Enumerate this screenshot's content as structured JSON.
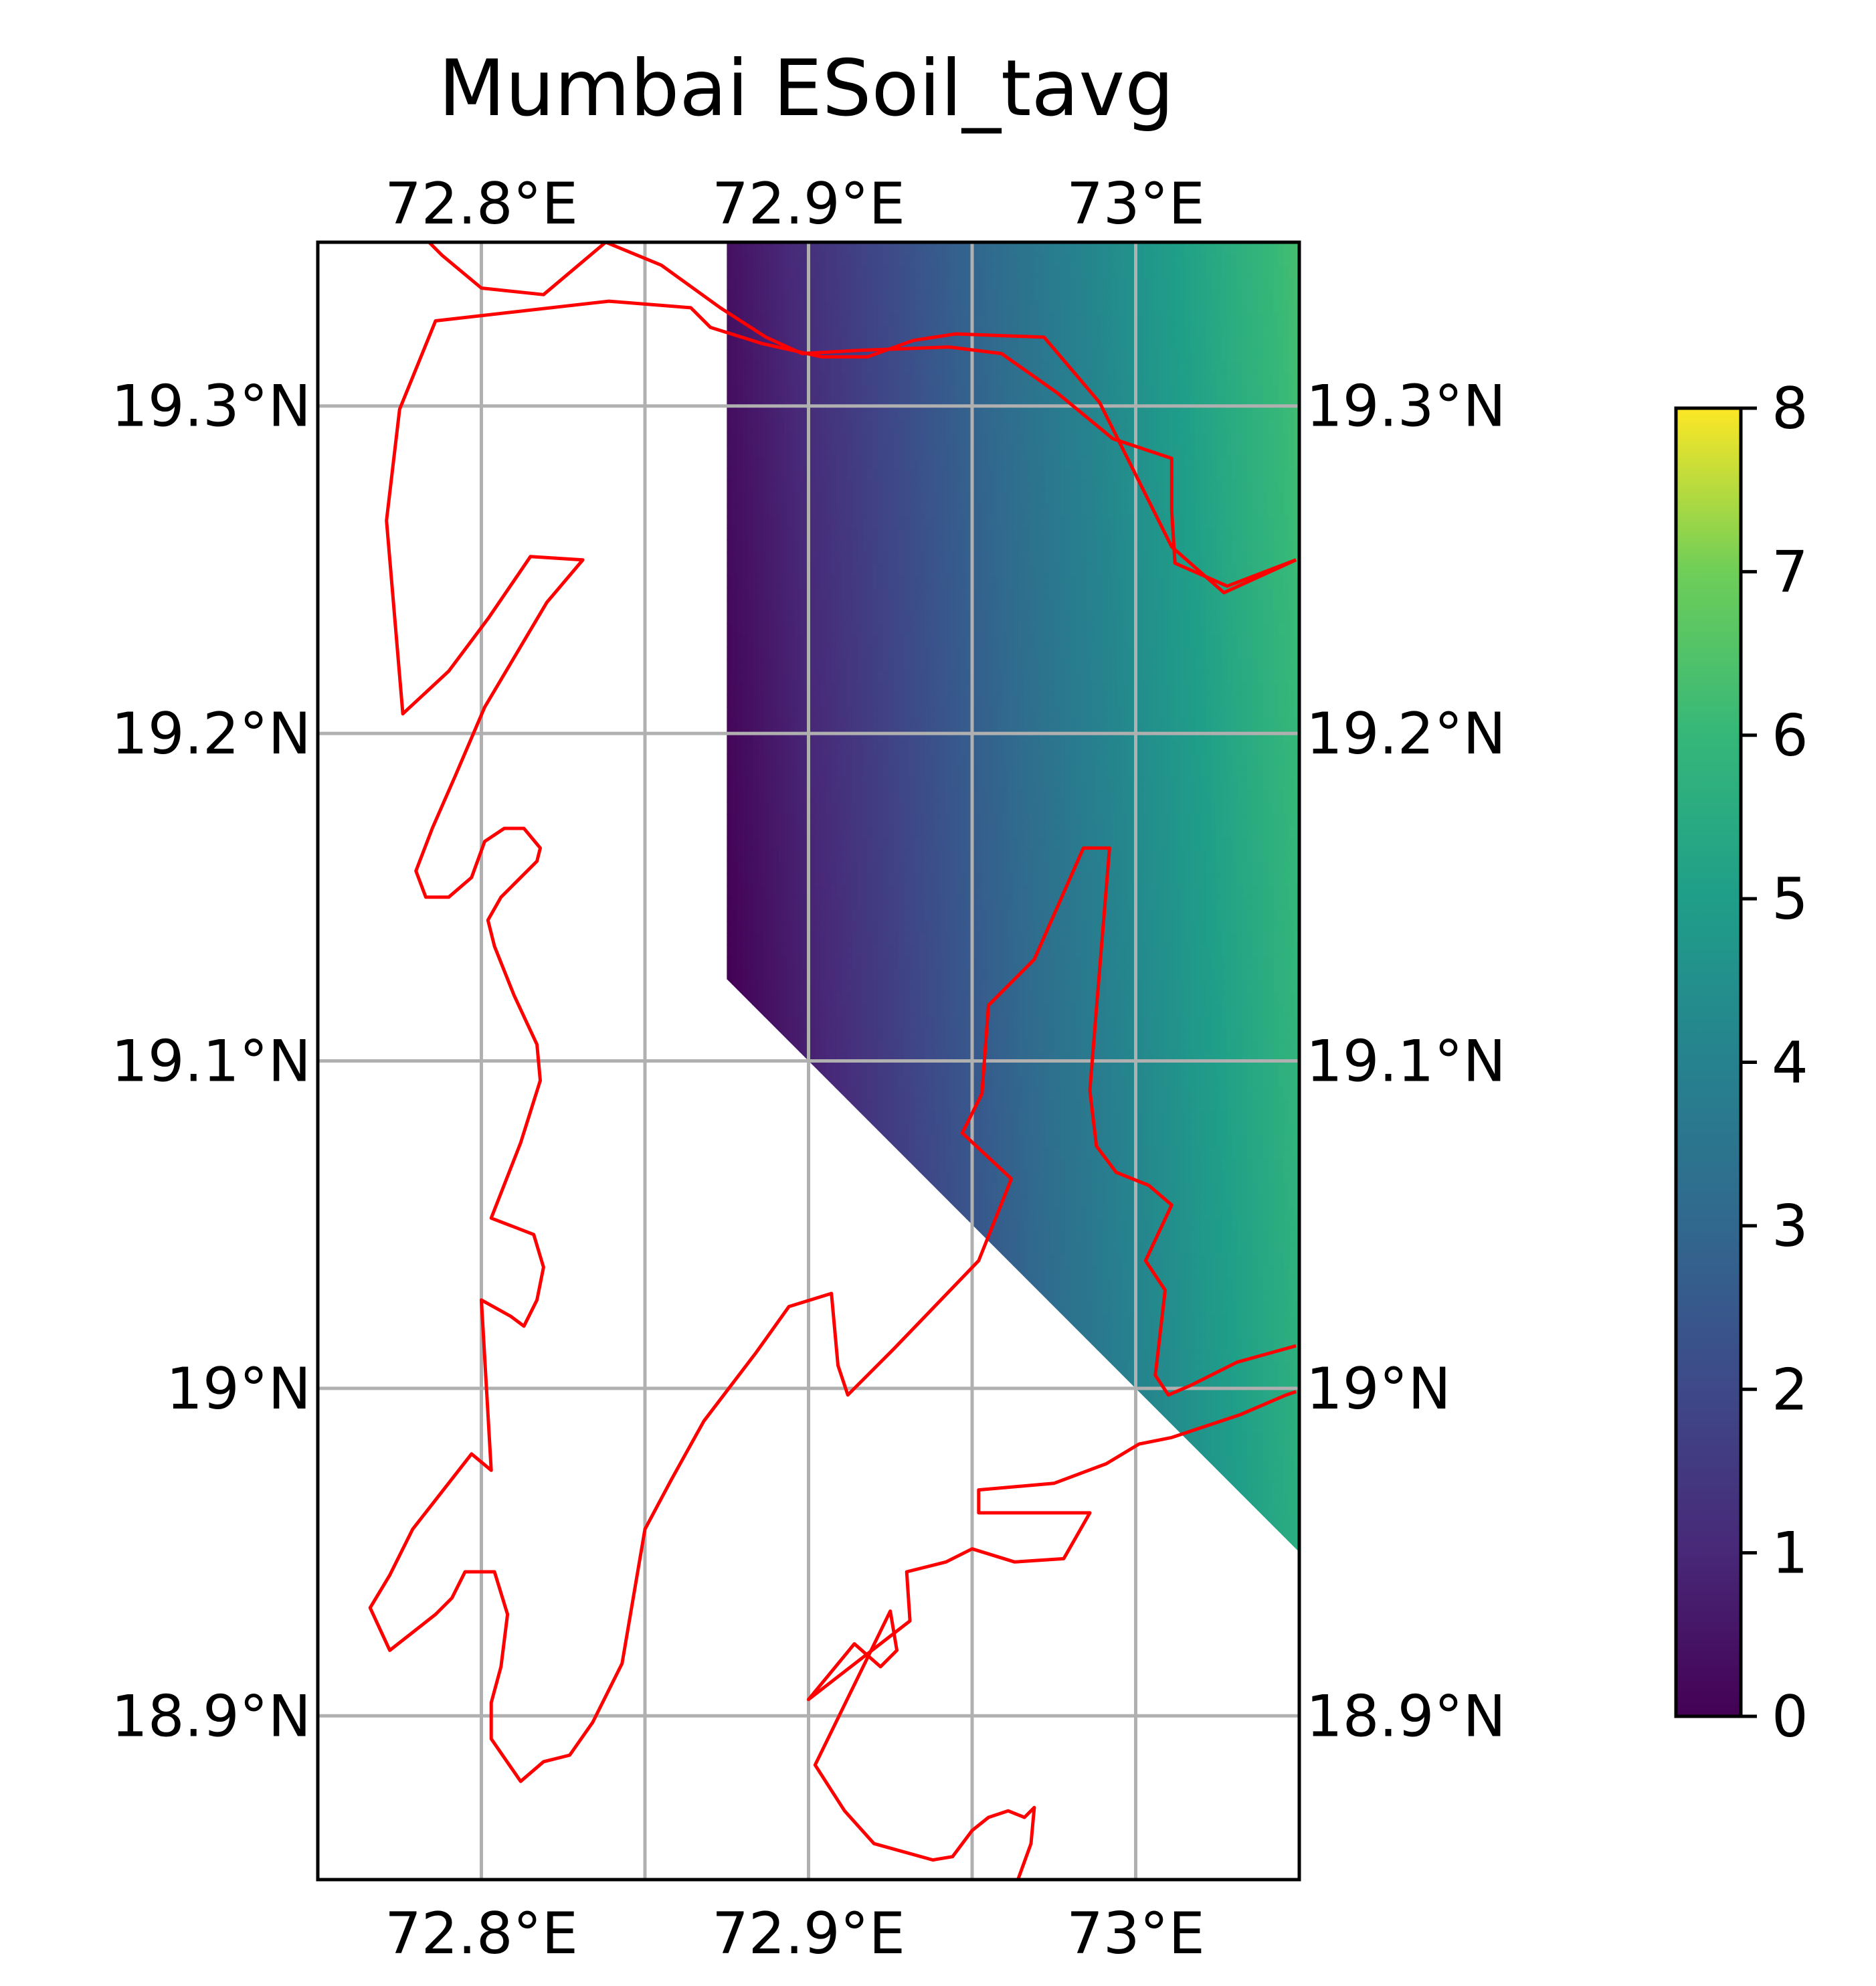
{
  "title": "Mumbai ESoil_tavg",
  "chart_data": {
    "type": "heatmap",
    "title": "Mumbai ESoil_tavg",
    "variable": "ESoil_tavg",
    "colormap": "viridis",
    "lon_range": [
      72.75,
      73.05
    ],
    "lat_range": [
      18.85,
      19.35
    ],
    "x_ticks": [
      {
        "value": 72.8,
        "label": "72.8°E"
      },
      {
        "value": 72.9,
        "label": "72.9°E"
      },
      {
        "value": 73.0,
        "label": "73°E"
      }
    ],
    "y_ticks": [
      {
        "value": 19.3,
        "label": "19.3°N"
      },
      {
        "value": 19.2,
        "label": "19.2°N"
      },
      {
        "value": 19.1,
        "label": "19.1°N"
      },
      {
        "value": 19.0,
        "label": "19°N"
      },
      {
        "value": 18.9,
        "label": "18.9°N"
      }
    ],
    "gridlines": {
      "lon": [
        72.8,
        72.85,
        72.9,
        72.95,
        73.0
      ],
      "lat": [
        19.3,
        19.2,
        19.1,
        19.0,
        18.9
      ]
    },
    "grid": true,
    "colorbar": {
      "range": [
        0,
        8
      ],
      "ticks": [
        {
          "value": 0,
          "label": "0"
        },
        {
          "value": 1,
          "label": "1"
        },
        {
          "value": 2,
          "label": "2"
        },
        {
          "value": 3,
          "label": "3"
        },
        {
          "value": 4,
          "label": "4"
        },
        {
          "value": 5,
          "label": "5"
        },
        {
          "value": 6,
          "label": "6"
        },
        {
          "value": 7,
          "label": "7"
        },
        {
          "value": 8,
          "label": "8"
        }
      ]
    },
    "field": {
      "points": [
        {
          "lon": 72.875,
          "lat": 19.125,
          "value": 0.0
        },
        {
          "lon": 73.05,
          "lat": 19.35,
          "value": 6.3
        },
        {
          "lon": 73.05,
          "lat": 18.95,
          "value": 5.6
        }
      ],
      "valid_region": [
        [
          72.875,
          19.35
        ],
        [
          73.05,
          19.35
        ],
        [
          73.05,
          18.95
        ],
        [
          72.875,
          19.125
        ]
      ]
    },
    "coastline_color": "#ff0000",
    "coastlines": [
      [
        [
          72.784,
          19.35
        ],
        [
          72.788,
          19.346
        ],
        [
          72.8,
          19.336
        ],
        [
          72.819,
          19.334
        ],
        [
          72.838,
          19.35
        ],
        [
          72.855,
          19.343
        ],
        [
          72.873,
          19.33
        ],
        [
          72.887,
          19.321
        ],
        [
          72.898,
          19.316
        ],
        [
          72.916,
          19.317
        ],
        [
          72.943,
          19.318
        ],
        [
          72.959,
          19.316
        ],
        [
          72.976,
          19.304
        ],
        [
          72.993,
          19.29
        ],
        [
          73.011,
          19.284
        ],
        [
          73.011,
          19.268
        ],
        [
          73.012,
          19.252
        ],
        [
          73.028,
          19.245
        ],
        [
          73.049,
          19.253
        ]
      ],
      [
        [
          73.049,
          19.253
        ],
        [
          73.027,
          19.243
        ],
        [
          73.011,
          19.257
        ],
        [
          72.989,
          19.301
        ],
        [
          72.972,
          19.321
        ],
        [
          72.945,
          19.322
        ],
        [
          72.932,
          19.32
        ],
        [
          72.918,
          19.315
        ],
        [
          72.904,
          19.315
        ],
        [
          72.886,
          19.319
        ],
        [
          72.87,
          19.324
        ],
        [
          72.864,
          19.33
        ],
        [
          72.839,
          19.332
        ],
        [
          72.786,
          19.326
        ],
        [
          72.775,
          19.299
        ],
        [
          72.771,
          19.265
        ],
        [
          72.776,
          19.206
        ],
        [
          72.79,
          19.219
        ],
        [
          72.802,
          19.235
        ],
        [
          72.815,
          19.254
        ],
        [
          72.831,
          19.253
        ],
        [
          72.82,
          19.24
        ],
        [
          72.801,
          19.208
        ],
        [
          72.792,
          19.187
        ],
        [
          72.785,
          19.171
        ],
        [
          72.78,
          19.158
        ],
        [
          72.783,
          19.15
        ],
        [
          72.79,
          19.15
        ],
        [
          72.797,
          19.156
        ],
        [
          72.801,
          19.167
        ],
        [
          72.807,
          19.171
        ],
        [
          72.813,
          19.171
        ],
        [
          72.818,
          19.165
        ],
        [
          72.817,
          19.161
        ],
        [
          72.81,
          19.154
        ],
        [
          72.806,
          19.15
        ],
        [
          72.802,
          19.143
        ],
        [
          72.804,
          19.135
        ],
        [
          72.81,
          19.12
        ],
        [
          72.817,
          19.105
        ],
        [
          72.818,
          19.094
        ],
        [
          72.812,
          19.075
        ],
        [
          72.803,
          19.052
        ],
        [
          72.816,
          19.047
        ],
        [
          72.819,
          19.037
        ],
        [
          72.817,
          19.027
        ],
        [
          72.813,
          19.019
        ],
        [
          72.809,
          19.022
        ],
        [
          72.8,
          19.027
        ],
        [
          72.803,
          18.975
        ],
        [
          72.797,
          18.98
        ],
        [
          72.779,
          18.957
        ],
        [
          72.772,
          18.943
        ],
        [
          72.766,
          18.933
        ],
        [
          72.772,
          18.92
        ],
        [
          72.786,
          18.931
        ],
        [
          72.791,
          18.936
        ],
        [
          72.795,
          18.944
        ],
        [
          72.804,
          18.944
        ],
        [
          72.808,
          18.931
        ],
        [
          72.806,
          18.915
        ],
        [
          72.803,
          18.904
        ],
        [
          72.803,
          18.893
        ],
        [
          72.812,
          18.88
        ],
        [
          72.819,
          18.886
        ],
        [
          72.827,
          18.888
        ],
        [
          72.834,
          18.898
        ],
        [
          72.843,
          18.916
        ],
        [
          72.85,
          18.957
        ],
        [
          72.858,
          18.972
        ],
        [
          72.868,
          18.99
        ],
        [
          72.884,
          19.011
        ],
        [
          72.894,
          19.025
        ],
        [
          72.907,
          19.029
        ],
        [
          72.909,
          19.007
        ],
        [
          72.912,
          18.998
        ],
        [
          72.926,
          19.012
        ],
        [
          72.952,
          19.039
        ],
        [
          72.962,
          19.064
        ],
        [
          72.947,
          19.078
        ],
        [
          72.953,
          19.09
        ],
        [
          72.955,
          19.117
        ],
        [
          72.969,
          19.131
        ],
        [
          72.984,
          19.165
        ],
        [
          72.992,
          19.165
        ],
        [
          72.988,
          19.116
        ],
        [
          72.986,
          19.091
        ],
        [
          72.988,
          19.074
        ],
        [
          72.994,
          19.066
        ],
        [
          73.004,
          19.062
        ],
        [
          73.011,
          19.056
        ],
        [
          73.003,
          19.039
        ],
        [
          73.009,
          19.03
        ],
        [
          73.006,
          19.004
        ],
        [
          73.01,
          18.998
        ],
        [
          73.017,
          19.001
        ],
        [
          73.031,
          19.008
        ],
        [
          73.049,
          19.013
        ]
      ],
      [
        [
          73.049,
          18.999
        ],
        [
          73.046,
          18.998
        ],
        [
          73.032,
          18.992
        ],
        [
          73.011,
          18.985
        ],
        [
          73.001,
          18.983
        ],
        [
          72.991,
          18.977
        ],
        [
          72.975,
          18.971
        ],
        [
          72.952,
          18.969
        ],
        [
          72.952,
          18.962
        ],
        [
          72.986,
          18.962
        ],
        [
          72.978,
          18.948
        ],
        [
          72.963,
          18.947
        ],
        [
          72.95,
          18.951
        ],
        [
          72.942,
          18.947
        ],
        [
          72.93,
          18.944
        ],
        [
          72.931,
          18.929
        ],
        [
          72.9,
          18.905
        ],
        [
          72.914,
          18.922
        ],
        [
          72.922,
          18.915
        ],
        [
          72.927,
          18.92
        ],
        [
          72.925,
          18.932
        ],
        [
          72.902,
          18.885
        ],
        [
          72.911,
          18.871
        ],
        [
          72.92,
          18.861
        ],
        [
          72.938,
          18.856
        ],
        [
          72.944,
          18.857
        ],
        [
          72.95,
          18.865
        ],
        [
          72.955,
          18.869
        ],
        [
          72.961,
          18.871
        ],
        [
          72.966,
          18.869
        ],
        [
          72.969,
          18.872
        ],
        [
          72.968,
          18.861
        ],
        [
          72.964,
          18.85
        ]
      ]
    ]
  }
}
